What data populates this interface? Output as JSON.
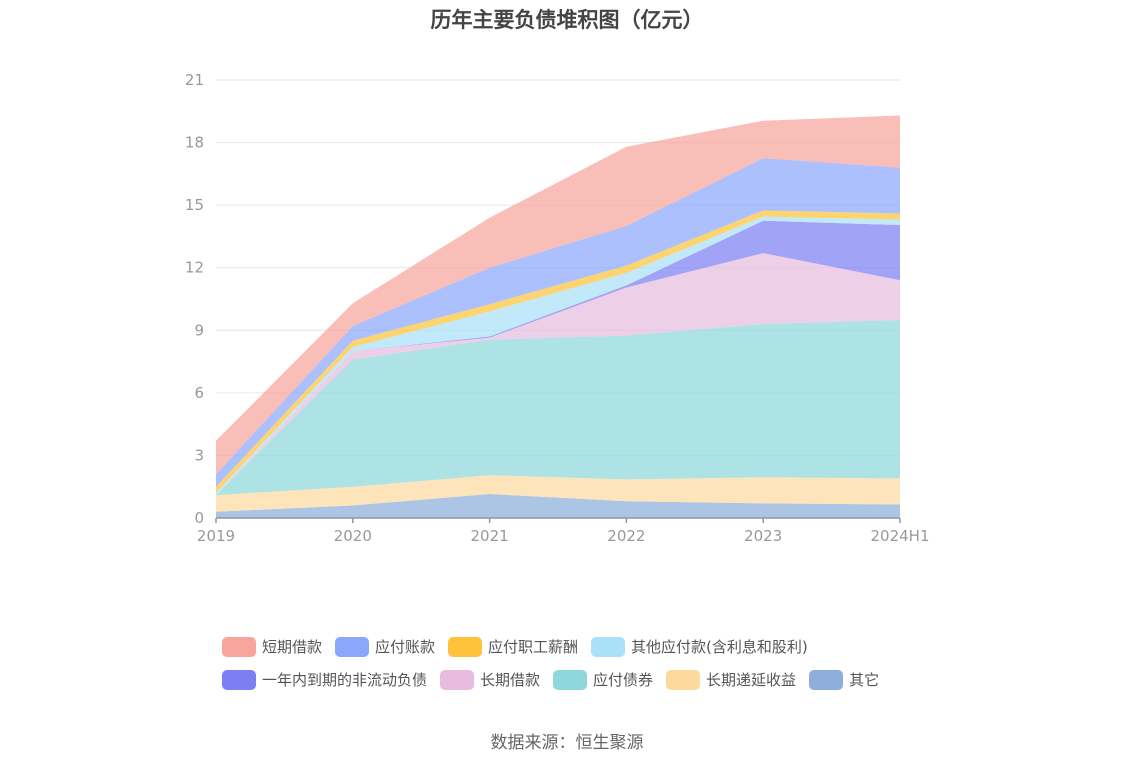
{
  "chart_data": {
    "type": "area",
    "stacked": true,
    "title": "历年主要负债堆积图（亿元）",
    "categories": [
      "2019",
      "2020",
      "2021",
      "2022",
      "2023",
      "2024H1"
    ],
    "y_ticks": [
      "0",
      "3",
      "6",
      "9",
      "12",
      "15",
      "18",
      "21"
    ],
    "ylim": [
      0,
      21
    ],
    "series": [
      {
        "name": "其它",
        "color": "#8eaedb",
        "values": [
          0.3,
          0.6,
          1.15,
          0.8,
          0.7,
          0.65
        ]
      },
      {
        "name": "长期递延收益",
        "color": "#fdd9a0",
        "values": [
          0.8,
          0.9,
          0.9,
          1.05,
          1.25,
          1.25
        ]
      },
      {
        "name": "应付债券",
        "color": "#8ed8db",
        "values": [
          0.0,
          6.1,
          6.5,
          6.9,
          7.35,
          7.6
        ]
      },
      {
        "name": "长期借款",
        "color": "#e8bcdf",
        "values": [
          0.0,
          0.4,
          0.1,
          2.3,
          3.4,
          1.9
        ]
      },
      {
        "name": "一年内到期的非流动负债",
        "color": "#7b7ff2",
        "values": [
          0.0,
          0.0,
          0.05,
          0.1,
          1.55,
          2.65
        ]
      },
      {
        "name": "其他应付款(含利息和股利)",
        "color": "#a9e1f8",
        "values": [
          0.1,
          0.2,
          1.2,
          0.6,
          0.2,
          0.25
        ]
      },
      {
        "name": "应付职工薪酬",
        "color": "#fec33a",
        "values": [
          0.3,
          0.3,
          0.35,
          0.35,
          0.3,
          0.3
        ]
      },
      {
        "name": "应付账款",
        "color": "#8aa7fb",
        "values": [
          0.6,
          0.7,
          1.75,
          1.9,
          2.5,
          2.2
        ]
      },
      {
        "name": "短期借款",
        "color": "#f7a59d",
        "values": [
          1.6,
          1.1,
          2.4,
          3.8,
          1.8,
          2.5
        ]
      }
    ],
    "legend": {
      "rows": [
        [
          "短期借款",
          "应付账款",
          "应付职工薪酬",
          "其他应付款(含利息和股利)"
        ],
        [
          "一年内到期的非流动负债",
          "长期借款",
          "应付债券",
          "长期递延收益",
          "其它"
        ]
      ],
      "placement": "bottom"
    }
  },
  "source": "数据来源：恒生聚源"
}
